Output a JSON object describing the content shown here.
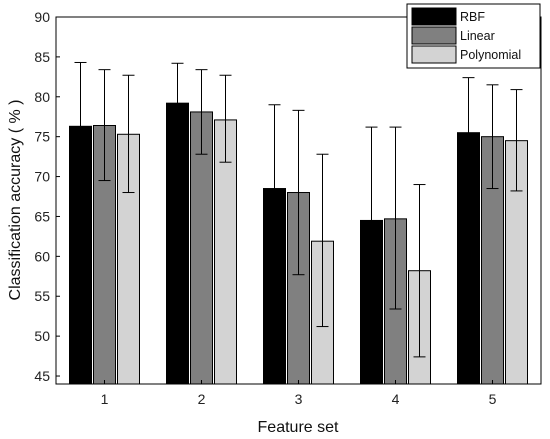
{
  "chart_data": {
    "type": "bar",
    "title": "",
    "xlabel": "Feature set",
    "ylabel": "Classification accuracy ( % )",
    "ylim": [
      44,
      90
    ],
    "yticks": [
      45,
      50,
      55,
      60,
      65,
      70,
      75,
      80,
      85,
      90
    ],
    "categories": [
      "1",
      "2",
      "3",
      "4",
      "5"
    ],
    "grid": false,
    "legend_position": "top-right",
    "series": [
      {
        "name": "RBF",
        "color": "#000000",
        "values": [
          76.3,
          79.2,
          68.5,
          64.5,
          75.5
        ],
        "error_upper": [
          84.3,
          84.2,
          79.0,
          76.2,
          82.4
        ]
      },
      {
        "name": "Linear",
        "color": "#808080",
        "values": [
          76.4,
          78.1,
          68.0,
          64.7,
          75.0
        ],
        "error_upper": [
          83.4,
          83.4,
          78.3,
          76.2,
          81.5
        ],
        "error_lower": [
          69.5,
          72.8,
          57.7,
          53.4,
          68.5
        ]
      },
      {
        "name": "Polynomial",
        "color": "#d3d3d3",
        "values": [
          75.3,
          77.1,
          61.9,
          58.2,
          74.5
        ],
        "error_upper": [
          82.7,
          82.7,
          72.8,
          69.0,
          80.9
        ],
        "error_lower": [
          68.0,
          71.8,
          51.2,
          47.4,
          68.2
        ]
      }
    ]
  }
}
